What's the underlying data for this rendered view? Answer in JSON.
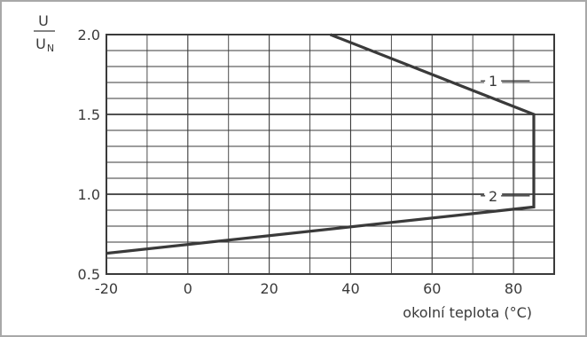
{
  "chart_data": {
    "type": "line",
    "ylabel_num": "U",
    "ylabel_den": "U",
    "ylabel_den_sub": "N",
    "xlabel": "okolní teplota (°C)",
    "xlim": [
      -20,
      90
    ],
    "ylim": [
      0.5,
      2.0
    ],
    "x_ticks": [
      -20,
      0,
      20,
      40,
      60,
      80
    ],
    "x_tick_labels": [
      "-20",
      "0",
      "20",
      "40",
      "60",
      "80"
    ],
    "y_ticks": [
      0.5,
      1.0,
      1.5,
      2.0
    ],
    "y_tick_labels": [
      "0.5",
      "1.0",
      "1.5",
      "2.0"
    ],
    "grid": true,
    "series": [
      {
        "name": "1",
        "points": [
          [
            35,
            2.0
          ],
          [
            85,
            1.5
          ],
          [
            85,
            0.92
          ],
          [
            -20,
            0.63
          ]
        ]
      }
    ],
    "annotations": [
      {
        "text": "1",
        "x": 75,
        "y": 1.71,
        "leader_to": [
          84,
          1.71
        ]
      },
      {
        "text": "2",
        "x": 75,
        "y": 0.99,
        "leader_to": [
          84,
          0.99
        ]
      }
    ],
    "line_color": "#3a3a3a",
    "grid_color": "#3a3a3a"
  }
}
